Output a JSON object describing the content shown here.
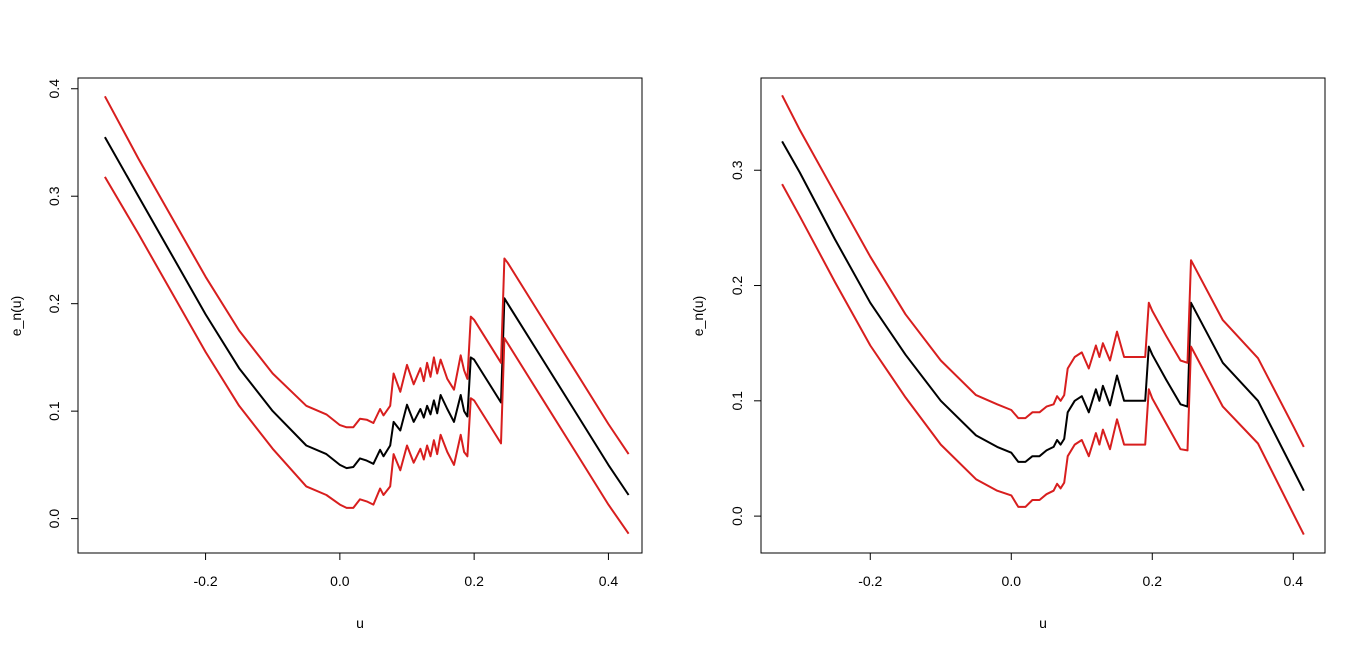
{
  "colors": {
    "estimate": "#000000",
    "band": "#d81e1e",
    "axis": "#000000",
    "background": "#ffffff"
  },
  "chart_data": [
    {
      "type": "line",
      "xlabel": "u",
      "ylabel": "e_n(u)",
      "xlim": [
        -0.39,
        0.45
      ],
      "ylim": [
        -0.032,
        0.41
      ],
      "xticks": [
        -0.2,
        0.0,
        0.2,
        0.4
      ],
      "xtick_labels": [
        "-0.2",
        "0.0",
        "0.2",
        "0.4"
      ],
      "yticks": [
        0.0,
        0.1,
        0.2,
        0.3,
        0.4
      ],
      "ytick_labels": [
        "0.0",
        "0.1",
        "0.2",
        "0.3",
        "0.4"
      ],
      "grid": false,
      "series": [
        {
          "role": "estimate",
          "color": "#000000",
          "x": [
            -0.35,
            -0.3,
            -0.25,
            -0.2,
            -0.15,
            -0.1,
            -0.05,
            -0.02,
            0.0,
            0.01,
            0.02,
            0.03,
            0.04,
            0.05,
            0.06,
            0.065,
            0.075,
            0.08,
            0.09,
            0.1,
            0.11,
            0.12,
            0.125,
            0.13,
            0.135,
            0.14,
            0.145,
            0.15,
            0.16,
            0.17,
            0.18,
            0.185,
            0.19,
            0.195,
            0.2,
            0.22,
            0.24,
            0.245,
            0.25,
            0.3,
            0.35,
            0.4,
            0.43
          ],
          "y": [
            0.355,
            0.3,
            0.245,
            0.19,
            0.14,
            0.1,
            0.068,
            0.06,
            0.05,
            0.047,
            0.048,
            0.056,
            0.054,
            0.051,
            0.064,
            0.058,
            0.068,
            0.09,
            0.082,
            0.106,
            0.09,
            0.102,
            0.094,
            0.105,
            0.097,
            0.11,
            0.098,
            0.115,
            0.102,
            0.09,
            0.115,
            0.1,
            0.095,
            0.15,
            0.148,
            0.128,
            0.108,
            0.205,
            0.2,
            0.15,
            0.1,
            0.05,
            0.022
          ]
        },
        {
          "role": "upper",
          "color": "#d81e1e",
          "x": [
            -0.35,
            -0.3,
            -0.25,
            -0.2,
            -0.15,
            -0.1,
            -0.05,
            -0.02,
            0.0,
            0.01,
            0.02,
            0.03,
            0.04,
            0.05,
            0.06,
            0.065,
            0.075,
            0.08,
            0.09,
            0.1,
            0.11,
            0.12,
            0.125,
            0.13,
            0.135,
            0.14,
            0.145,
            0.15,
            0.16,
            0.17,
            0.18,
            0.185,
            0.19,
            0.195,
            0.2,
            0.22,
            0.24,
            0.245,
            0.25,
            0.3,
            0.35,
            0.4,
            0.43
          ],
          "y": [
            0.393,
            0.335,
            0.28,
            0.225,
            0.175,
            0.135,
            0.105,
            0.097,
            0.087,
            0.085,
            0.085,
            0.093,
            0.092,
            0.089,
            0.102,
            0.096,
            0.105,
            0.135,
            0.118,
            0.143,
            0.125,
            0.14,
            0.128,
            0.145,
            0.132,
            0.15,
            0.135,
            0.148,
            0.13,
            0.12,
            0.152,
            0.138,
            0.13,
            0.188,
            0.185,
            0.165,
            0.145,
            0.242,
            0.238,
            0.188,
            0.138,
            0.088,
            0.06
          ]
        },
        {
          "role": "lower",
          "color": "#d81e1e",
          "x": [
            -0.35,
            -0.3,
            -0.25,
            -0.2,
            -0.15,
            -0.1,
            -0.05,
            -0.02,
            0.0,
            0.01,
            0.02,
            0.03,
            0.04,
            0.05,
            0.06,
            0.065,
            0.075,
            0.08,
            0.09,
            0.1,
            0.11,
            0.12,
            0.125,
            0.13,
            0.135,
            0.14,
            0.145,
            0.15,
            0.16,
            0.17,
            0.18,
            0.185,
            0.19,
            0.195,
            0.2,
            0.22,
            0.24,
            0.245,
            0.25,
            0.3,
            0.35,
            0.4,
            0.43
          ],
          "y": [
            0.318,
            0.265,
            0.21,
            0.155,
            0.105,
            0.065,
            0.03,
            0.022,
            0.013,
            0.01,
            0.01,
            0.018,
            0.016,
            0.013,
            0.028,
            0.022,
            0.03,
            0.06,
            0.045,
            0.068,
            0.052,
            0.065,
            0.055,
            0.068,
            0.058,
            0.073,
            0.06,
            0.078,
            0.062,
            0.05,
            0.078,
            0.062,
            0.058,
            0.112,
            0.11,
            0.09,
            0.07,
            0.168,
            0.163,
            0.113,
            0.063,
            0.013,
            -0.014
          ]
        }
      ]
    },
    {
      "type": "line",
      "xlabel": "u",
      "ylabel": "e_n(u)",
      "xlim": [
        -0.355,
        0.445
      ],
      "ylim": [
        -0.032,
        0.38
      ],
      "xticks": [
        -0.2,
        0.0,
        0.2,
        0.4
      ],
      "xtick_labels": [
        "-0.2",
        "0.0",
        "0.2",
        "0.4"
      ],
      "yticks": [
        0.0,
        0.1,
        0.2,
        0.3
      ],
      "ytick_labels": [
        "0.0",
        "0.1",
        "0.2",
        "0.3"
      ],
      "grid": false,
      "series": [
        {
          "role": "estimate",
          "color": "#000000",
          "x": [
            -0.325,
            -0.3,
            -0.25,
            -0.2,
            -0.15,
            -0.1,
            -0.05,
            -0.02,
            0.0,
            0.01,
            0.02,
            0.03,
            0.04,
            0.05,
            0.06,
            0.065,
            0.07,
            0.075,
            0.08,
            0.09,
            0.1,
            0.11,
            0.12,
            0.125,
            0.13,
            0.14,
            0.15,
            0.16,
            0.17,
            0.18,
            0.19,
            0.195,
            0.2,
            0.22,
            0.24,
            0.25,
            0.255,
            0.3,
            0.35,
            0.4,
            0.415
          ],
          "y": [
            0.325,
            0.298,
            0.24,
            0.185,
            0.14,
            0.1,
            0.07,
            0.06,
            0.055,
            0.047,
            0.047,
            0.052,
            0.052,
            0.057,
            0.06,
            0.066,
            0.062,
            0.067,
            0.09,
            0.1,
            0.104,
            0.09,
            0.11,
            0.1,
            0.113,
            0.096,
            0.122,
            0.1,
            0.1,
            0.1,
            0.1,
            0.147,
            0.14,
            0.118,
            0.097,
            0.095,
            0.185,
            0.133,
            0.1,
            0.04,
            0.022
          ]
        },
        {
          "role": "upper",
          "color": "#d81e1e",
          "x": [
            -0.325,
            -0.3,
            -0.25,
            -0.2,
            -0.15,
            -0.1,
            -0.05,
            -0.02,
            0.0,
            0.01,
            0.02,
            0.03,
            0.04,
            0.05,
            0.06,
            0.065,
            0.07,
            0.075,
            0.08,
            0.09,
            0.1,
            0.11,
            0.12,
            0.125,
            0.13,
            0.14,
            0.15,
            0.16,
            0.17,
            0.18,
            0.19,
            0.195,
            0.2,
            0.22,
            0.24,
            0.25,
            0.255,
            0.3,
            0.35,
            0.4,
            0.415
          ],
          "y": [
            0.365,
            0.335,
            0.28,
            0.225,
            0.175,
            0.135,
            0.105,
            0.097,
            0.092,
            0.085,
            0.085,
            0.09,
            0.09,
            0.095,
            0.097,
            0.104,
            0.1,
            0.105,
            0.128,
            0.138,
            0.142,
            0.128,
            0.148,
            0.138,
            0.15,
            0.135,
            0.16,
            0.138,
            0.138,
            0.138,
            0.138,
            0.185,
            0.178,
            0.156,
            0.135,
            0.133,
            0.222,
            0.17,
            0.137,
            0.078,
            0.06
          ]
        },
        {
          "role": "lower",
          "color": "#d81e1e",
          "x": [
            -0.325,
            -0.3,
            -0.25,
            -0.2,
            -0.15,
            -0.1,
            -0.05,
            -0.02,
            0.0,
            0.01,
            0.02,
            0.03,
            0.04,
            0.05,
            0.06,
            0.065,
            0.07,
            0.075,
            0.08,
            0.09,
            0.1,
            0.11,
            0.12,
            0.125,
            0.13,
            0.14,
            0.15,
            0.16,
            0.17,
            0.18,
            0.19,
            0.195,
            0.2,
            0.22,
            0.24,
            0.25,
            0.255,
            0.3,
            0.35,
            0.4,
            0.415
          ],
          "y": [
            0.288,
            0.26,
            0.203,
            0.148,
            0.103,
            0.062,
            0.032,
            0.022,
            0.018,
            0.008,
            0.008,
            0.014,
            0.014,
            0.019,
            0.022,
            0.028,
            0.024,
            0.029,
            0.052,
            0.062,
            0.066,
            0.052,
            0.072,
            0.062,
            0.075,
            0.058,
            0.084,
            0.062,
            0.062,
            0.062,
            0.062,
            0.11,
            0.102,
            0.08,
            0.058,
            0.057,
            0.147,
            0.095,
            0.063,
            0.002,
            -0.016
          ]
        }
      ]
    }
  ]
}
